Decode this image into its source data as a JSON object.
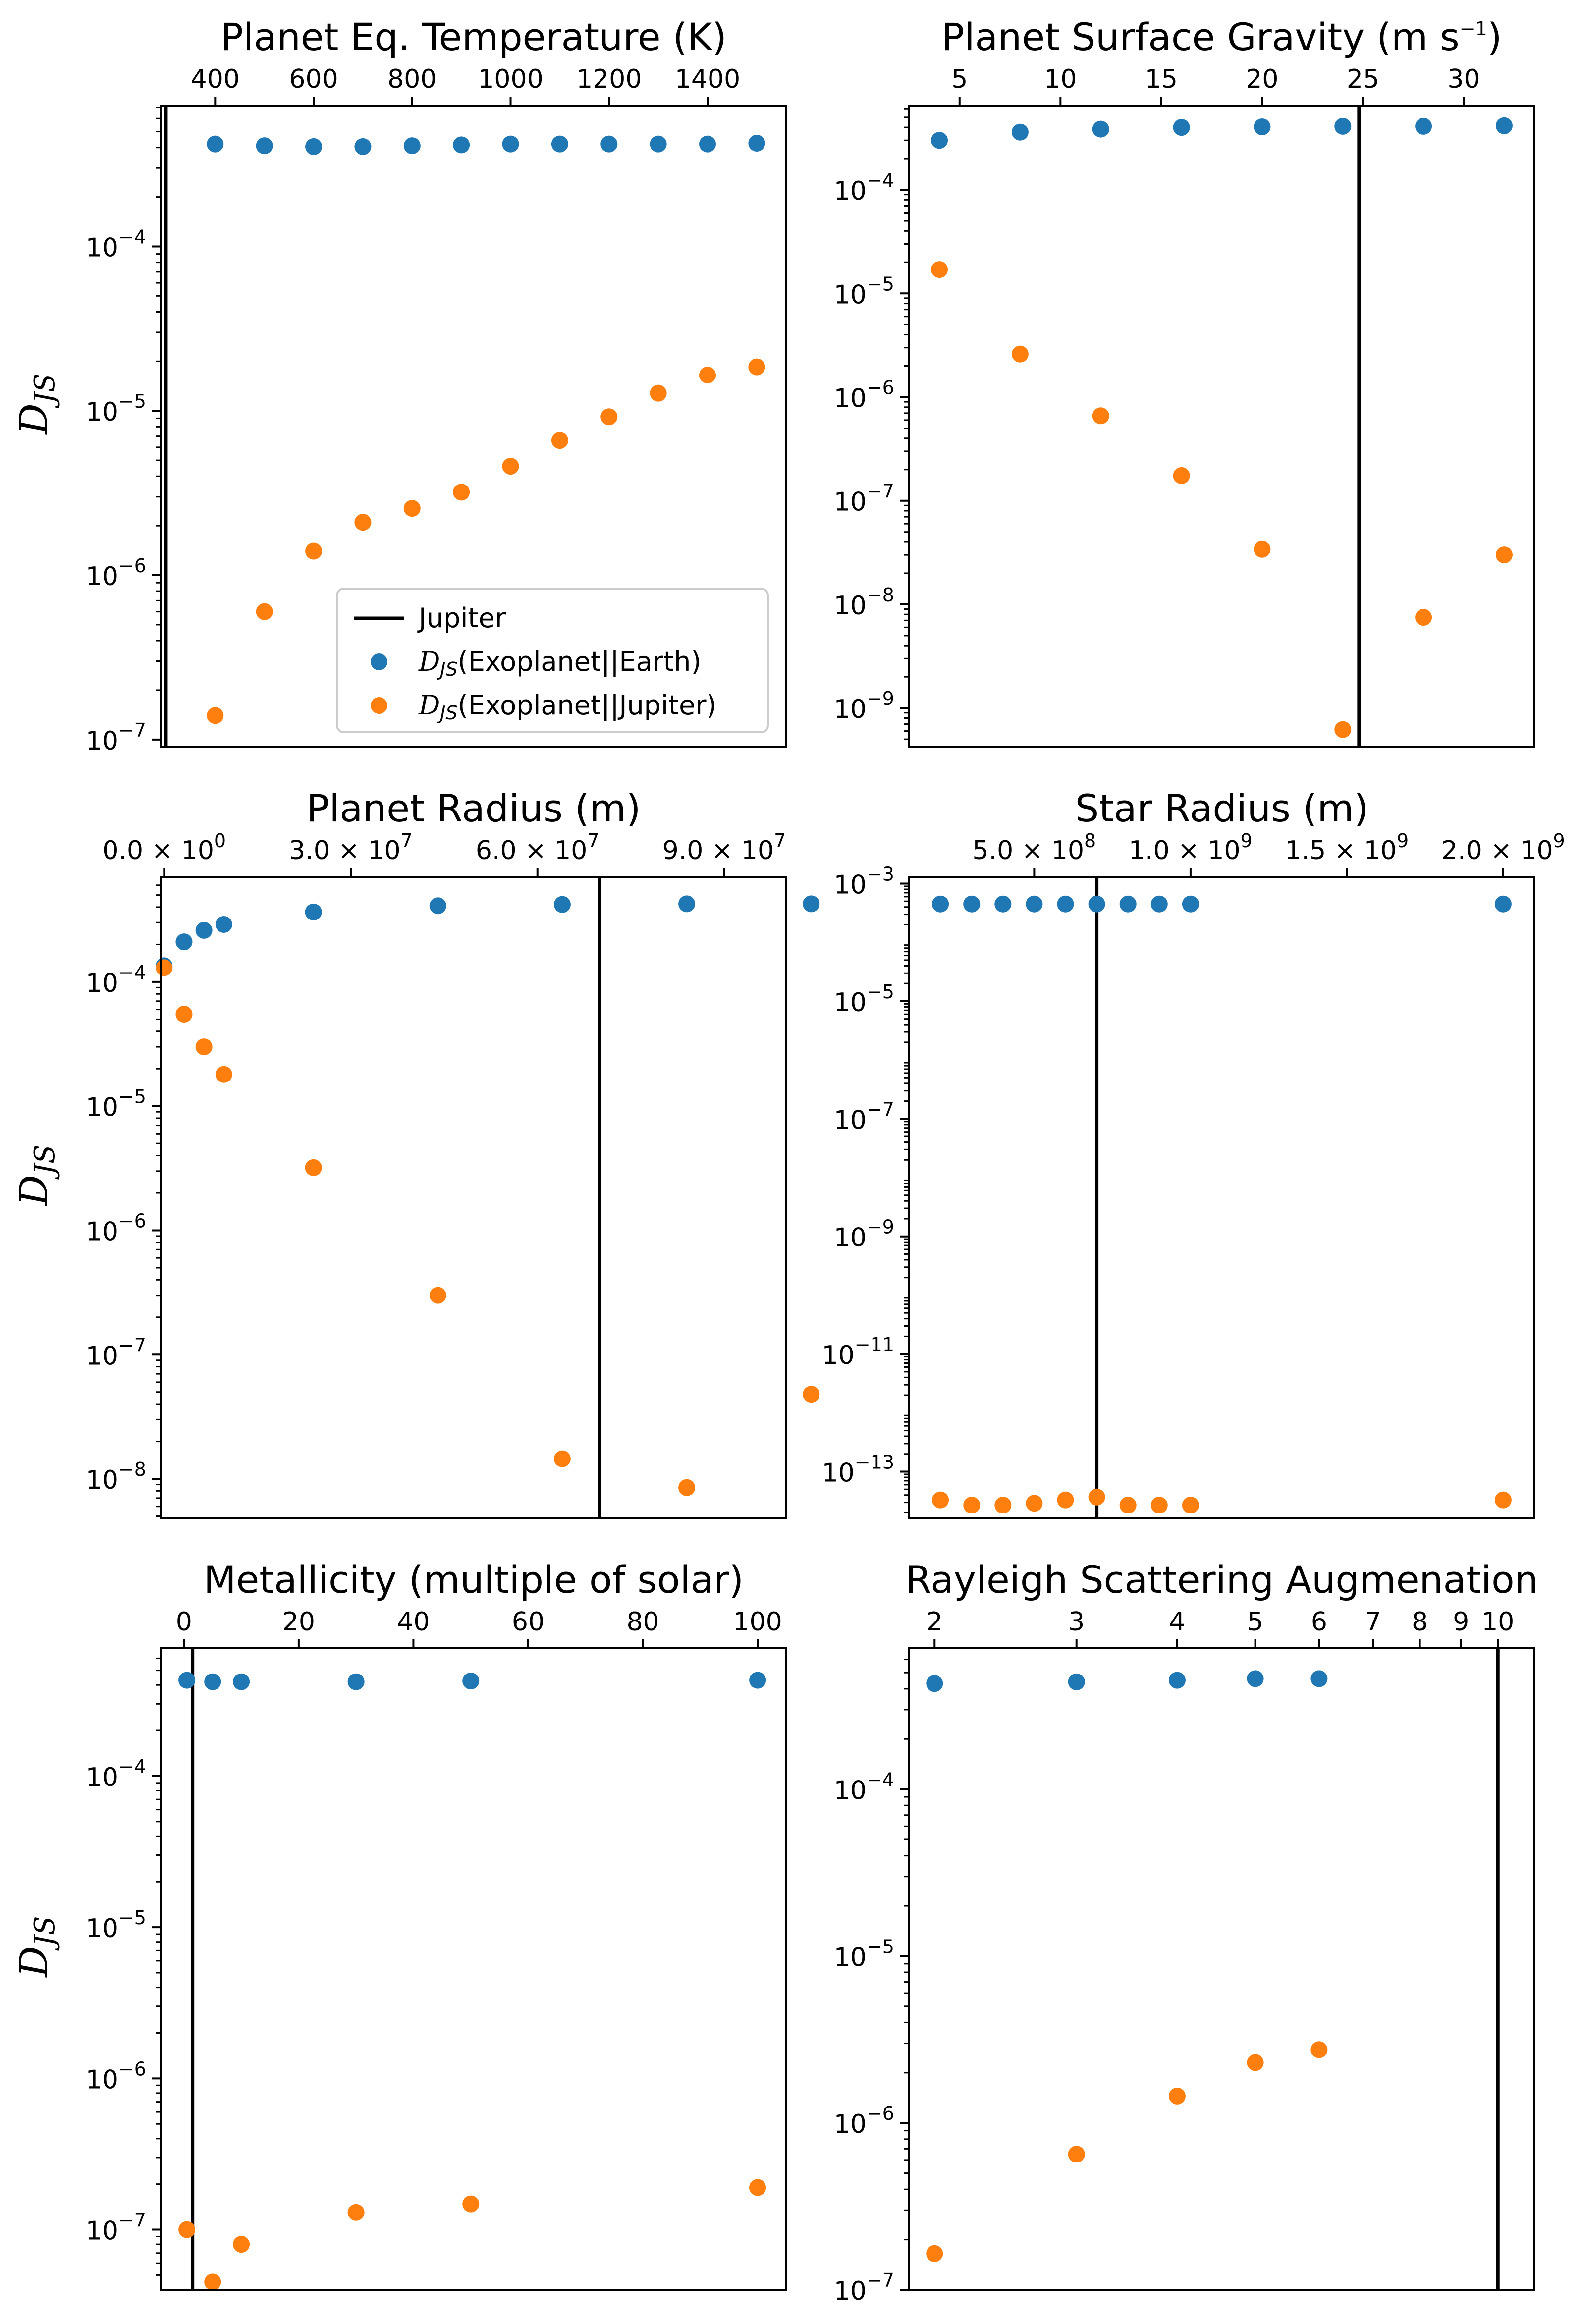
{
  "colors": {
    "earth": "#1f77b4",
    "jupiter": "#ff7f0e",
    "jupiter_line": "#000000"
  },
  "legend": {
    "jupiter": "Jupiter",
    "earth_prefix": "D",
    "earth_sub": "JS",
    "earth_suffix": "(Exoplanet||Earth)",
    "jupiter_prefix": "D",
    "jupiter_sub": "JS",
    "jupiter_suffix": "(Exoplanet||Jupiter)"
  },
  "ylabel": {
    "main": "D",
    "sub": "JS"
  },
  "chart_data": [
    {
      "type": "scatter",
      "title": "Planet Eq. Temperature (K)",
      "xscale": "linear",
      "yscale": "log",
      "xlim": [
        290,
        1560
      ],
      "ylim": [
        9e-08,
        0.00072
      ],
      "xticks": [
        400,
        600,
        800,
        1000,
        1200,
        1400
      ],
      "xtick_labels": [
        "400",
        "600",
        "800",
        "1000",
        "1200",
        "1400"
      ],
      "yticks": [
        1e-07,
        1e-06,
        1e-05,
        0.0001
      ],
      "ytick_labels": [
        {
          "base": "10",
          "exp": "−7"
        },
        {
          "base": "10",
          "exp": "−6"
        },
        {
          "base": "10",
          "exp": "−5"
        },
        {
          "base": "10",
          "exp": "−4"
        }
      ],
      "jupiter_x": 300,
      "show_ylabel": true,
      "show_legend": true,
      "legend_loc": "lower right",
      "series": [
        {
          "name": "D_JS(Exoplanet||Earth)",
          "x": [
            400,
            500,
            600,
            700,
            800,
            900,
            1000,
            1100,
            1200,
            1300,
            1400,
            1500
          ],
          "y": [
            0.00042,
            0.00041,
            0.000405,
            0.000405,
            0.00041,
            0.000415,
            0.00042,
            0.00042,
            0.00042,
            0.00042,
            0.00042,
            0.000425
          ]
        },
        {
          "name": "D_JS(Exoplanet||Jupiter)",
          "x": [
            400,
            500,
            600,
            700,
            800,
            900,
            1000,
            1100,
            1200,
            1300,
            1400,
            1500
          ],
          "y": [
            1.4e-07,
            6e-07,
            1.4e-06,
            2.1e-06,
            2.55e-06,
            3.2e-06,
            4.6e-06,
            6.6e-06,
            9.2e-06,
            1.28e-05,
            1.65e-05,
            1.85e-05
          ]
        }
      ]
    },
    {
      "type": "scatter",
      "title": "Planet Surface Gravity (m s−1)",
      "title_main": "Planet Surface Gravity (m s",
      "title_sup": "−1",
      "title_end": ")",
      "xscale": "linear",
      "yscale": "log",
      "xlim": [
        2.5,
        33.5
      ],
      "ylim": [
        4.2e-10,
        0.00065
      ],
      "xticks": [
        5,
        10,
        15,
        20,
        25,
        30
      ],
      "xtick_labels": [
        "5",
        "10",
        "15",
        "20",
        "25",
        "30"
      ],
      "yticks": [
        1e-09,
        1e-08,
        1e-07,
        1e-06,
        1e-05,
        0.0001
      ],
      "ytick_labels": [
        {
          "base": "10",
          "exp": "−9"
        },
        {
          "base": "10",
          "exp": "−8"
        },
        {
          "base": "10",
          "exp": "−7"
        },
        {
          "base": "10",
          "exp": "−6"
        },
        {
          "base": "10",
          "exp": "−5"
        },
        {
          "base": "10",
          "exp": "−4"
        }
      ],
      "jupiter_x": 24.8,
      "show_ylabel": false,
      "show_legend": false,
      "series": [
        {
          "name": "D_JS(Exoplanet||Earth)",
          "x": [
            4,
            8,
            12,
            16,
            20,
            24,
            28,
            32
          ],
          "y": [
            0.0003,
            0.00036,
            0.000385,
            0.0004,
            0.000405,
            0.00041,
            0.00041,
            0.000415
          ]
        },
        {
          "name": "D_JS(Exoplanet||Jupiter)",
          "x": [
            4,
            8,
            12,
            16,
            20,
            24,
            28,
            32
          ],
          "y": [
            1.7e-05,
            2.6e-06,
            6.6e-07,
            1.75e-07,
            3.4e-08,
            6.2e-10,
            7.5e-09,
            3e-08
          ]
        }
      ]
    },
    {
      "type": "scatter",
      "title": "Planet Radius (m)",
      "xscale": "linear",
      "yscale": "log",
      "xlim": [
        -500000.0,
        100000000.0
      ],
      "ylim": [
        4.8e-09,
        0.0007
      ],
      "xticks": [
        0,
        30000000.0,
        60000000.0,
        90000000.0
      ],
      "xtick_labels": [
        "0.0 × 10",
        "3.0 × 10",
        "6.0 × 10",
        "9.0 × 10"
      ],
      "xtick_exps": [
        "0",
        "7",
        "7",
        "7"
      ],
      "yticks": [
        1e-08,
        1e-07,
        1e-06,
        1e-05,
        0.0001
      ],
      "ytick_labels": [
        {
          "base": "10",
          "exp": "−8"
        },
        {
          "base": "10",
          "exp": "−7"
        },
        {
          "base": "10",
          "exp": "−6"
        },
        {
          "base": "10",
          "exp": "−5"
        },
        {
          "base": "10",
          "exp": "−4"
        }
      ],
      "jupiter_x": 70000000.0,
      "show_ylabel": true,
      "show_legend": false,
      "series": [
        {
          "name": "D_JS(Exoplanet||Earth)",
          "x": [
            0,
            3200000.0,
            6400000.0,
            9600000.0,
            24000000.0,
            44000000.0,
            64000000.0,
            84000000.0,
            104000000.0
          ],
          "y": [
            0.000135,
            0.00021,
            0.00026,
            0.00029,
            0.000365,
            0.00041,
            0.00042,
            0.000425,
            0.000425
          ]
        },
        {
          "name": "D_JS(Exoplanet||Jupiter)",
          "x": [
            0,
            3200000.0,
            6400000.0,
            9600000.0,
            24000000.0,
            44000000.0,
            64000000.0,
            84000000.0,
            104000000.0
          ],
          "y": [
            0.00013,
            5.5e-05,
            3e-05,
            1.8e-05,
            3.2e-06,
            3e-07,
            1.45e-08,
            8.5e-09,
            4.8e-08
          ]
        }
      ]
    },
    {
      "type": "scatter",
      "title": "Star Radius (m)",
      "xscale": "linear",
      "yscale": "log",
      "xlim": [
        100000000.0,
        2100000000.0
      ],
      "ylim": [
        1.6e-14,
        0.0013
      ],
      "xticks": [
        500000000.0,
        1000000000.0,
        1500000000.0,
        2000000000.0
      ],
      "xtick_labels": [
        "5.0 × 10",
        "1.0 × 10",
        "1.5 × 10",
        "2.0 × 10"
      ],
      "xtick_exps": [
        "8",
        "9",
        "9",
        "9"
      ],
      "yticks": [
        1e-13,
        1e-11,
        1e-09,
        1e-07,
        1e-05,
        0.001
      ],
      "ytick_labels": [
        {
          "base": "10",
          "exp": "−13"
        },
        {
          "base": "10",
          "exp": "−11"
        },
        {
          "base": "10",
          "exp": "−9"
        },
        {
          "base": "10",
          "exp": "−7"
        },
        {
          "base": "10",
          "exp": "−5"
        },
        {
          "base": "10",
          "exp": "−3"
        }
      ],
      "jupiter_x": 700000000.0,
      "show_ylabel": false,
      "show_legend": false,
      "series": [
        {
          "name": "D_JS(Exoplanet||Earth)",
          "x": [
            200000000.0,
            300000000.0,
            400000000.0,
            500000000.0,
            600000000.0,
            700000000.0,
            800000000.0,
            900000000.0,
            1000000000.0,
            2000000000.0
          ],
          "y": [
            0.00045,
            0.00045,
            0.00045,
            0.00045,
            0.00045,
            0.00045,
            0.00045,
            0.00045,
            0.00045,
            0.00045
          ]
        },
        {
          "name": "D_JS(Exoplanet||Jupiter)",
          "x": [
            200000000.0,
            300000000.0,
            400000000.0,
            500000000.0,
            600000000.0,
            700000000.0,
            800000000.0,
            900000000.0,
            1000000000.0,
            2000000000.0
          ],
          "y": [
            3.3e-14,
            2.7e-14,
            2.7e-14,
            2.9e-14,
            3.3e-14,
            3.7e-14,
            2.7e-14,
            2.7e-14,
            2.7e-14,
            3.3e-14
          ]
        }
      ]
    },
    {
      "type": "scatter",
      "title": "Metallicity (multiple of solar)",
      "xscale": "linear",
      "yscale": "log",
      "xlim": [
        -4,
        105
      ],
      "ylim": [
        4e-08,
        0.0007
      ],
      "xticks": [
        0,
        20,
        40,
        60,
        80,
        100
      ],
      "xtick_labels": [
        "0",
        "20",
        "40",
        "60",
        "80",
        "100"
      ],
      "yticks": [
        1e-07,
        1e-06,
        1e-05,
        0.0001
      ],
      "ytick_labels": [
        {
          "base": "10",
          "exp": "−7"
        },
        {
          "base": "10",
          "exp": "−6"
        },
        {
          "base": "10",
          "exp": "−5"
        },
        {
          "base": "10",
          "exp": "−4"
        }
      ],
      "jupiter_x": 1.5,
      "show_ylabel": true,
      "show_legend": false,
      "series": [
        {
          "name": "D_JS(Exoplanet||Earth)",
          "x": [
            0.5,
            5,
            10,
            30,
            50,
            100
          ],
          "y": [
            0.00043,
            0.00042,
            0.00042,
            0.00042,
            0.000425,
            0.00043
          ]
        },
        {
          "name": "D_JS(Exoplanet||Jupiter)",
          "x": [
            0.5,
            5,
            10,
            30,
            50,
            100
          ],
          "y": [
            1e-07,
            4.5e-08,
            8e-08,
            1.3e-07,
            1.48e-07,
            1.9e-07
          ]
        }
      ]
    },
    {
      "type": "scatter",
      "title": "Rayleigh Scattering Augmenation",
      "xscale": "log",
      "yscale": "log",
      "xlim": [
        1.86,
        11.1
      ],
      "ylim": [
        1e-07,
        0.0007
      ],
      "xticks": [
        2,
        3,
        4,
        5,
        6,
        7,
        8,
        9,
        10
      ],
      "xtick_labels": [
        "2",
        "3",
        "4",
        "5",
        "6",
        "7",
        "8",
        "9",
        "10"
      ],
      "yticks": [
        1e-07,
        1e-06,
        1e-05,
        0.0001
      ],
      "ytick_labels": [
        {
          "base": "10",
          "exp": "−7"
        },
        {
          "base": "10",
          "exp": "−6"
        },
        {
          "base": "10",
          "exp": "−5"
        },
        {
          "base": "10",
          "exp": "−4"
        }
      ],
      "jupiter_x": 10.0,
      "show_ylabel": false,
      "show_legend": false,
      "series": [
        {
          "name": "D_JS(Exoplanet||Earth)",
          "x": [
            2,
            3,
            4,
            5,
            6
          ],
          "y": [
            0.00043,
            0.00044,
            0.00045,
            0.00046,
            0.00046
          ]
        },
        {
          "name": "D_JS(Exoplanet||Jupiter)",
          "x": [
            2,
            3,
            4,
            5,
            6
          ],
          "y": [
            1.65e-07,
            6.5e-07,
            1.45e-06,
            2.3e-06,
            2.75e-06
          ]
        }
      ]
    }
  ]
}
